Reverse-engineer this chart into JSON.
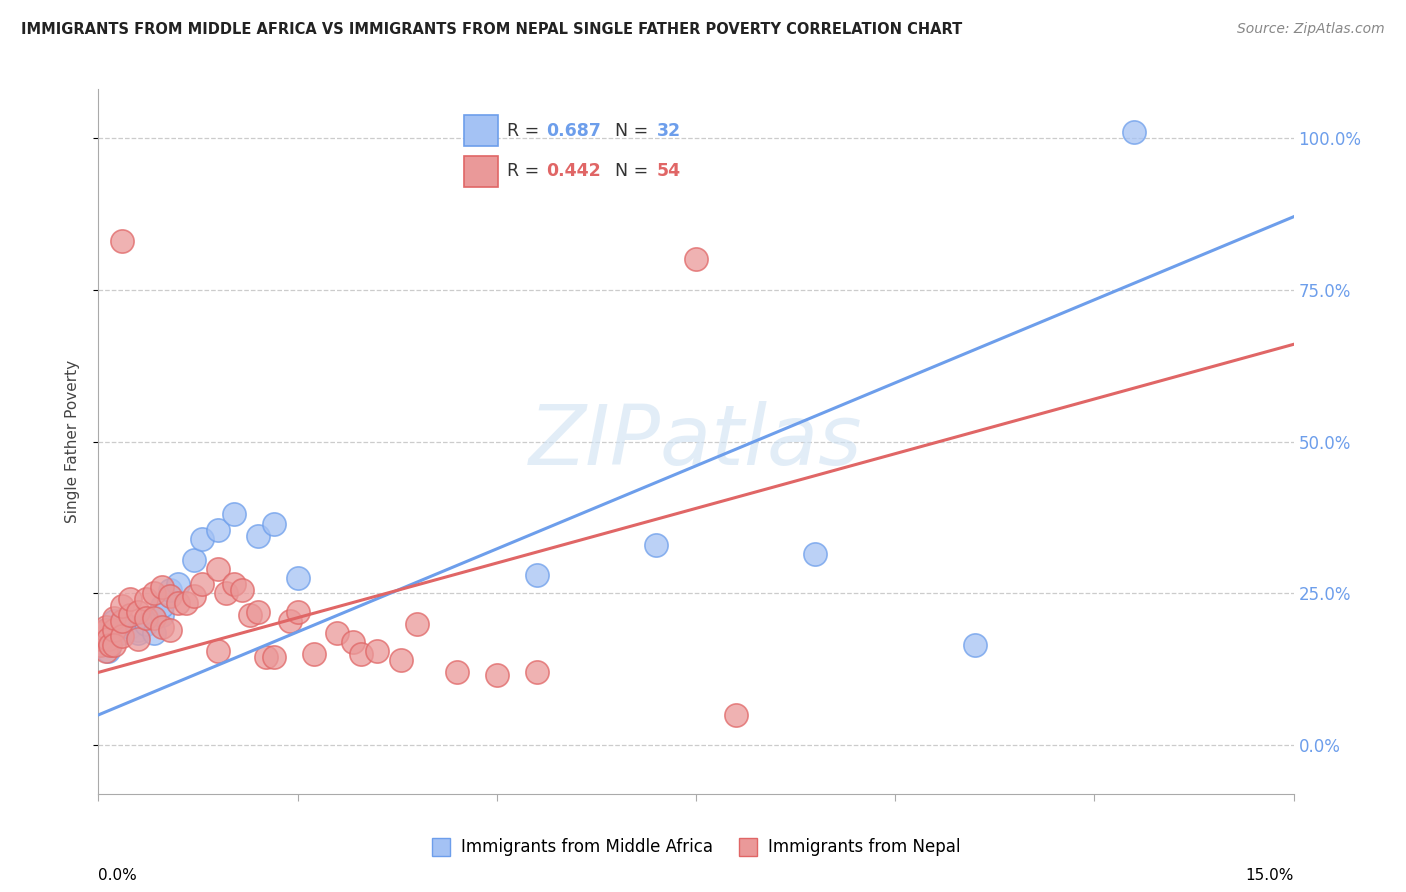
{
  "title": "IMMIGRANTS FROM MIDDLE AFRICA VS IMMIGRANTS FROM NEPAL SINGLE FATHER POVERTY CORRELATION CHART",
  "source": "Source: ZipAtlas.com",
  "ylabel": "Single Father Poverty",
  "blue_label": "Immigrants from Middle Africa",
  "pink_label": "Immigrants from Nepal",
  "legend_blue_r": "0.687",
  "legend_blue_n": "32",
  "legend_pink_r": "0.442",
  "legend_pink_n": "54",
  "blue_fill": "#a4c2f4",
  "blue_edge": "#6d9eeb",
  "pink_fill": "#ea9999",
  "pink_edge": "#e06666",
  "blue_line": "#6d9eeb",
  "pink_line": "#e06666",
  "watermark_color": "#cfe2f3",
  "xlim": [
    0.0,
    0.15
  ],
  "ylim": [
    -0.08,
    1.08
  ],
  "xtick_positions": [
    0.0,
    0.025,
    0.05,
    0.075,
    0.1,
    0.125,
    0.15
  ],
  "ytick_positions": [
    0.0,
    0.25,
    0.5,
    0.75,
    1.0
  ],
  "ytick_labels": [
    "0.0%",
    "25.0%",
    "50.0%",
    "75.0%",
    "100.0%"
  ],
  "blue_x": [
    0.0003,
    0.0005,
    0.001,
    0.001,
    0.0012,
    0.0015,
    0.002,
    0.002,
    0.002,
    0.003,
    0.003,
    0.004,
    0.005,
    0.005,
    0.006,
    0.007,
    0.008,
    0.008,
    0.009,
    0.01,
    0.012,
    0.013,
    0.015,
    0.017,
    0.02,
    0.022,
    0.025,
    0.055,
    0.07,
    0.09,
    0.11,
    0.13
  ],
  "blue_y": [
    0.165,
    0.175,
    0.18,
    0.19,
    0.155,
    0.175,
    0.195,
    0.185,
    0.205,
    0.185,
    0.2,
    0.195,
    0.19,
    0.185,
    0.2,
    0.185,
    0.215,
    0.23,
    0.255,
    0.265,
    0.305,
    0.34,
    0.355,
    0.38,
    0.345,
    0.365,
    0.275,
    0.28,
    0.33,
    0.315,
    0.165,
    1.01
  ],
  "pink_x": [
    0.0002,
    0.0003,
    0.0005,
    0.001,
    0.001,
    0.001,
    0.0012,
    0.0015,
    0.002,
    0.002,
    0.002,
    0.003,
    0.003,
    0.003,
    0.004,
    0.004,
    0.005,
    0.005,
    0.006,
    0.006,
    0.007,
    0.007,
    0.008,
    0.008,
    0.009,
    0.009,
    0.01,
    0.011,
    0.012,
    0.013,
    0.015,
    0.015,
    0.016,
    0.017,
    0.018,
    0.019,
    0.02,
    0.021,
    0.022,
    0.024,
    0.025,
    0.027,
    0.03,
    0.032,
    0.033,
    0.035,
    0.038,
    0.04,
    0.045,
    0.05,
    0.003,
    0.055,
    0.075,
    0.08
  ],
  "pink_y": [
    0.165,
    0.175,
    0.185,
    0.19,
    0.195,
    0.155,
    0.175,
    0.165,
    0.19,
    0.165,
    0.21,
    0.18,
    0.205,
    0.23,
    0.215,
    0.24,
    0.22,
    0.175,
    0.24,
    0.21,
    0.25,
    0.21,
    0.26,
    0.195,
    0.245,
    0.19,
    0.235,
    0.235,
    0.245,
    0.265,
    0.29,
    0.155,
    0.25,
    0.265,
    0.255,
    0.215,
    0.22,
    0.145,
    0.145,
    0.205,
    0.22,
    0.15,
    0.185,
    0.17,
    0.15,
    0.155,
    0.14,
    0.2,
    0.12,
    0.115,
    0.83,
    0.12,
    0.8,
    0.05
  ]
}
